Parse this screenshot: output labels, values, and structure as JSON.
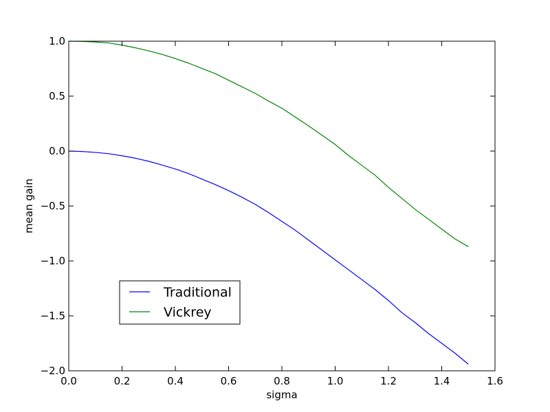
{
  "chart_data": {
    "type": "line",
    "title": "",
    "xlabel": "sigma",
    "ylabel": "mean gain",
    "xlim": [
      0.0,
      1.6
    ],
    "ylim": [
      -2.0,
      1.0
    ],
    "xticks": [
      0.0,
      0.2,
      0.4,
      0.6,
      0.8,
      1.0,
      1.2,
      1.4,
      1.6
    ],
    "xtick_labels": [
      "0.0",
      "0.2",
      "0.4",
      "0.6",
      "0.8",
      "1.0",
      "1.2",
      "1.4",
      "1.6"
    ],
    "yticks": [
      1.0,
      0.5,
      0.0,
      -0.5,
      -1.0,
      -1.5,
      -2.0
    ],
    "ytick_labels": [
      "1.0",
      "0.5",
      "0.0",
      "−0.5",
      "−1.0",
      "−1.5",
      "−2.0"
    ],
    "grid": false,
    "legend_position": "lower-left",
    "x": [
      0.0,
      0.05,
      0.1,
      0.15,
      0.2,
      0.25,
      0.3,
      0.35,
      0.4,
      0.45,
      0.5,
      0.55,
      0.6,
      0.65,
      0.7,
      0.75,
      0.8,
      0.85,
      0.9,
      0.95,
      1.0,
      1.05,
      1.1,
      1.15,
      1.2,
      1.25,
      1.3,
      1.35,
      1.4,
      1.45,
      1.5
    ],
    "series": [
      {
        "name": "Traditional",
        "color": "#0000ff",
        "values": [
          0.0,
          -0.004,
          -0.012,
          -0.024,
          -0.043,
          -0.065,
          -0.093,
          -0.127,
          -0.163,
          -0.205,
          -0.255,
          -0.305,
          -0.36,
          -0.42,
          -0.485,
          -0.56,
          -0.64,
          -0.72,
          -0.81,
          -0.9,
          -0.99,
          -1.08,
          -1.17,
          -1.26,
          -1.36,
          -1.47,
          -1.56,
          -1.66,
          -1.75,
          -1.84,
          -1.94
        ]
      },
      {
        "name": "Vickrey",
        "color": "#008000",
        "values": [
          1.0,
          0.998,
          0.993,
          0.984,
          0.965,
          0.94,
          0.912,
          0.88,
          0.842,
          0.8,
          0.752,
          0.705,
          0.645,
          0.585,
          0.525,
          0.455,
          0.39,
          0.31,
          0.23,
          0.145,
          0.06,
          -0.04,
          -0.13,
          -0.22,
          -0.33,
          -0.43,
          -0.53,
          -0.62,
          -0.71,
          -0.8,
          -0.87
        ]
      }
    ]
  }
}
